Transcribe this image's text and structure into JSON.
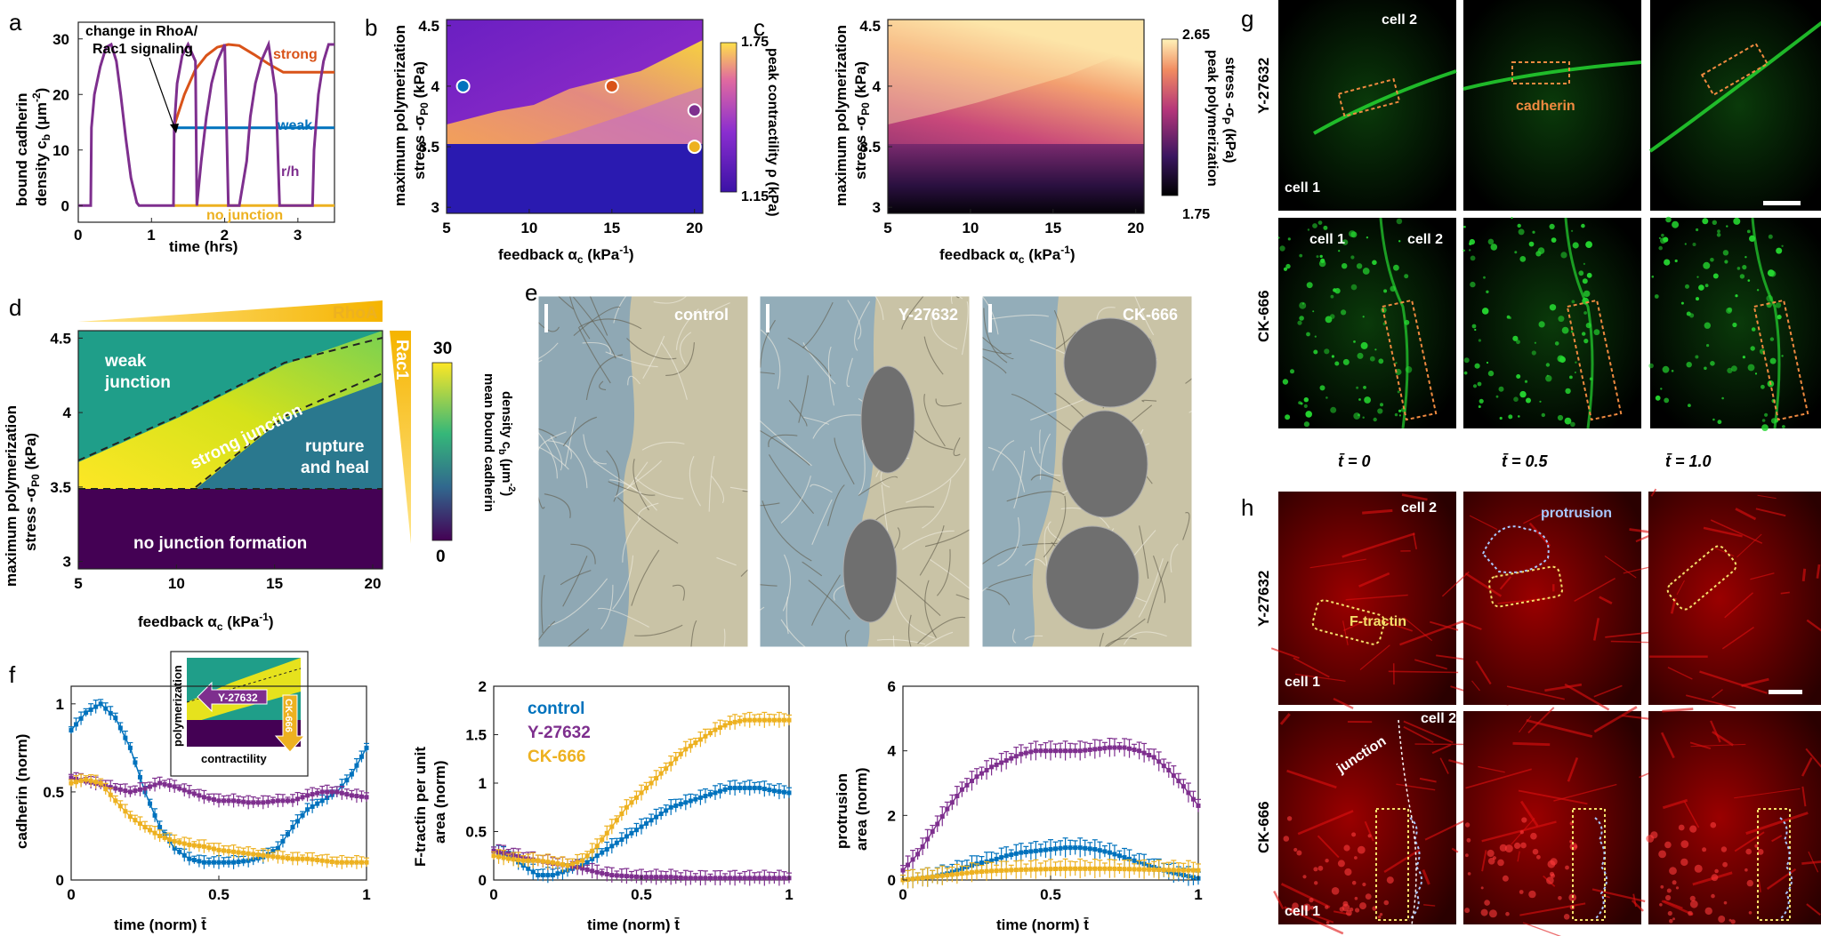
{
  "figure": {
    "panel_letters": [
      "a",
      "b",
      "c",
      "d",
      "e",
      "f",
      "g",
      "h"
    ]
  },
  "colors": {
    "strong": "#D95319",
    "weak": "#0072BD",
    "rh": "#7E2F8E",
    "nojunction": "#EDB120",
    "control": "#0072BD",
    "y27632": "#7E2F8E",
    "ck666": "#EDB120",
    "g_green": "#25d630",
    "h_red": "#e01010"
  },
  "panel_a": {
    "annotation_line1": "change in RhoA/",
    "annotation_line2": "Rac1 signaling",
    "label_strong": "strong",
    "label_weak": "weak",
    "label_rh": "r/h",
    "label_nojunction": "no junction",
    "xlabel": "time (hrs)",
    "ylabel_line1": "bound cadherin",
    "ylabel_line2": "density c",
    "ylabel_sub": "b",
    "ylabel_unit": " (μm",
    "ylabel_exp": "-2",
    "ylabel_close": ")",
    "xticks": [
      "0",
      "1",
      "2",
      "3"
    ],
    "yticks": [
      "0",
      "10",
      "20",
      "30"
    ]
  },
  "panel_b": {
    "ylabel_line1": "maximum polymerization",
    "ylabel_line2": "stress -σ",
    "ylabel_sub": "P0",
    "ylabel_unit": " (kPa)",
    "xlabel": "feedback α",
    "xlabel_sub": "c",
    "xlabel_unit": " (kPa",
    "xlabel_exp": "-1",
    "xlabel_close": ")",
    "xticks": [
      "5",
      "10",
      "15",
      "20"
    ],
    "yticks": [
      "3",
      "3.5",
      "4",
      "4.5"
    ],
    "cbar_max": "1.75",
    "cbar_min": "1.15",
    "cbar_label": "peak contractility ρ (kPa)"
  },
  "panel_c": {
    "ylabel_line1": "maximum polymerization",
    "ylabel_line2": "stress -σ",
    "ylabel_sub": "P0",
    "ylabel_unit": " (kPa)",
    "xlabel": "feedback α",
    "xlabel_sub": "c",
    "xlabel_unit": " (kPa",
    "xlabel_exp": "-1",
    "xlabel_close": ")",
    "xticks": [
      "5",
      "10",
      "15",
      "20"
    ],
    "yticks": [
      "3",
      "3.5",
      "4",
      "4.5"
    ],
    "cbar_max": "2.65",
    "cbar_min": "1.75",
    "cbar_label_line1": "peak polymerization",
    "cbar_label_line2": "stress -σ",
    "cbar_label_sub": "P",
    "cbar_label_unit": " (kPa)"
  },
  "panel_d": {
    "rhoa": "RhoA",
    "rac1": "Rac1",
    "region_weak_1": "weak",
    "region_weak_2": "junction",
    "region_strong": "strong junction",
    "region_rh_1": "rupture",
    "region_rh_2": "and heal",
    "region_none": "no junction formation",
    "ylabel_line1": "maximum polymerization",
    "ylabel_line2": "stress -σ",
    "ylabel_sub": "P0",
    "ylabel_unit": " (kPa)",
    "xlabel": "feedback α",
    "xlabel_sub": "c",
    "xlabel_unit": " (kPa",
    "xlabel_exp": "-1",
    "xlabel_close": ")",
    "xticks": [
      "5",
      "10",
      "15",
      "20"
    ],
    "yticks": [
      "3",
      "3.5",
      "4",
      "4.5"
    ],
    "cbar_max": "30",
    "cbar_min": "0",
    "cbar_label_line1": "mean bound cadherin",
    "cbar_label_line2": "density c",
    "cbar_label_sub": "b",
    "cbar_label_unit": " (μm",
    "cbar_label_exp": "-2",
    "cbar_label_close": ")"
  },
  "panel_e": {
    "labels": [
      "control",
      "Y-27632",
      "CK-666"
    ]
  },
  "panel_f": {
    "inset_ylabel": "polymerization",
    "inset_xlabel": "contractility",
    "inset_arrow1": "Y-27632",
    "inset_arrow2": "CK-666",
    "xlabel": "time (norm) t̄",
    "xticks": [
      "0",
      "0.5",
      "1"
    ],
    "plot1_ylabel": "cadherin (norm)",
    "plot1_yticks": [
      "0",
      "0.5",
      "1"
    ],
    "plot2_ylabel_line1": "F-tractin per unit",
    "plot2_ylabel_line2": "area (norm)",
    "plot2_yticks": [
      "0",
      "0.5",
      "1",
      "1.5",
      "2"
    ],
    "plot3_ylabel_line1": "protrusion",
    "plot3_ylabel_line2": "area (norm)",
    "plot3_yticks": [
      "0",
      "2",
      "4",
      "6"
    ],
    "legend": [
      "control",
      "Y-27632",
      "CK-666"
    ]
  },
  "panel_g": {
    "row1": "Y-27632",
    "row2": "CK-666",
    "cell1": "cell 1",
    "cell2": "cell 2",
    "cadherin": "cadherin",
    "times": [
      "t̄ = 0",
      "t̄ = 0.5",
      "t̄ = 1.0"
    ]
  },
  "panel_h": {
    "row1": "Y-27632",
    "row2": "CK-666",
    "cell1": "cell 1",
    "cell2": "cell 2",
    "protrusion": "protrusion",
    "ftractin": "F-tractin",
    "junction": "junction"
  },
  "chart_data": [
    {
      "id": "a",
      "type": "line",
      "title": "",
      "xlabel": "time (hrs)",
      "ylabel": "bound cadherin density c_b (μm^-2)",
      "xlim": [
        0,
        3.5
      ],
      "ylim": [
        -3,
        33
      ],
      "series": [
        {
          "name": "strong",
          "x": [
            1.3,
            1.45,
            1.6,
            1.75,
            1.9,
            2.05,
            2.2,
            2.4,
            2.6,
            2.8,
            3.0,
            3.2,
            3.5
          ],
          "values": [
            14,
            20,
            24.5,
            27,
            28.5,
            29,
            28.8,
            27.2,
            25.5,
            24,
            24,
            24,
            24
          ]
        },
        {
          "name": "weak",
          "x": [
            1.3,
            3.5
          ],
          "values": [
            14,
            14
          ]
        },
        {
          "name": "r/h",
          "x": [
            0,
            0.17,
            0.18,
            0.22,
            0.3,
            0.38,
            0.45,
            0.52,
            0.58,
            0.65,
            0.72,
            0.8,
            0.83,
            1.3,
            1.31,
            1.35,
            1.42,
            1.5,
            1.6,
            1.62,
            1.68,
            1.75,
            1.82,
            1.9,
            2.0,
            2.05,
            2.2,
            2.3,
            2.35,
            2.42,
            2.5,
            2.6,
            2.7,
            2.75,
            3.2,
            3.22,
            3.28,
            3.35,
            3.42,
            3.5
          ],
          "values": [
            0,
            0,
            14,
            20,
            25,
            28.5,
            29,
            26,
            20,
            12,
            5,
            0.5,
            0,
            0,
            14,
            22,
            27,
            29,
            26,
            0,
            8,
            16,
            22,
            26,
            29,
            0,
            0,
            8,
            16,
            22,
            26,
            29,
            20,
            0,
            0,
            10,
            20,
            26,
            29,
            29
          ]
        },
        {
          "name": "no junction",
          "x": [
            1.3,
            3.5
          ],
          "values": [
            0,
            0
          ]
        }
      ]
    },
    {
      "id": "b",
      "type": "heatmap",
      "xlabel": "feedback α_c (kPa^-1)",
      "ylabel": "maximum polymerization stress -σ_P0 (kPa)",
      "xlim": [
        5,
        20.5
      ],
      "ylim": [
        2.95,
        4.55
      ],
      "colorbar": {
        "label": "peak contractility ρ (kPa)",
        "min": 1.15,
        "max": 1.75
      },
      "markers": [
        {
          "x": 6,
          "y": 4.0,
          "color": "#0072BD"
        },
        {
          "x": 15,
          "y": 4.0,
          "color": "#D95319"
        },
        {
          "x": 20,
          "y": 3.8,
          "color": "#7E2F8E"
        },
        {
          "x": 20,
          "y": 3.5,
          "color": "#EDB120"
        }
      ]
    },
    {
      "id": "c",
      "type": "heatmap",
      "xlabel": "feedback α_c (kPa^-1)",
      "ylabel": "maximum polymerization stress -σ_P0 (kPa)",
      "xlim": [
        5,
        20.5
      ],
      "ylim": [
        2.95,
        4.55
      ],
      "colorbar": {
        "label": "peak polymerization stress -σ_P (kPa)",
        "min": 1.75,
        "max": 2.65
      }
    },
    {
      "id": "d",
      "type": "heatmap",
      "xlabel": "feedback α_c (kPa^-1)",
      "ylabel": "maximum polymerization stress -σ_P0 (kPa)",
      "xlim": [
        5,
        20.5
      ],
      "ylim": [
        2.95,
        4.55
      ],
      "colorbar": {
        "label": "mean bound cadherin density c_b (μm^-2)",
        "min": 0,
        "max": 30
      },
      "regions": [
        "weak junction",
        "strong junction",
        "rupture and heal",
        "no junction formation"
      ]
    },
    {
      "id": "f1",
      "type": "line",
      "xlabel": "time (norm) t̄",
      "ylabel": "cadherin (norm)",
      "xlim": [
        0,
        1
      ],
      "ylim": [
        0,
        1.05
      ],
      "series": [
        {
          "name": "control",
          "x": [
            0,
            0.05,
            0.1,
            0.15,
            0.2,
            0.25,
            0.3,
            0.35,
            0.4,
            0.45,
            0.5,
            0.55,
            0.6,
            0.65,
            0.7,
            0.75,
            0.8,
            0.85,
            0.9,
            0.95,
            1.0
          ],
          "values": [
            0.85,
            0.95,
            1.0,
            0.92,
            0.75,
            0.5,
            0.3,
            0.18,
            0.12,
            0.1,
            0.1,
            0.1,
            0.11,
            0.13,
            0.18,
            0.3,
            0.4,
            0.45,
            0.5,
            0.6,
            0.75
          ]
        },
        {
          "name": "Y-27632",
          "x": [
            0,
            0.05,
            0.1,
            0.15,
            0.2,
            0.25,
            0.3,
            0.35,
            0.4,
            0.45,
            0.5,
            0.55,
            0.6,
            0.65,
            0.7,
            0.75,
            0.8,
            0.85,
            0.9,
            0.95,
            1.0
          ],
          "values": [
            0.58,
            0.56,
            0.54,
            0.52,
            0.5,
            0.52,
            0.55,
            0.53,
            0.5,
            0.47,
            0.45,
            0.45,
            0.44,
            0.44,
            0.45,
            0.45,
            0.48,
            0.5,
            0.5,
            0.48,
            0.47
          ]
        },
        {
          "name": "CK-666",
          "x": [
            0,
            0.05,
            0.1,
            0.15,
            0.2,
            0.25,
            0.3,
            0.35,
            0.4,
            0.45,
            0.5,
            0.55,
            0.6,
            0.65,
            0.7,
            0.75,
            0.8,
            0.85,
            0.9,
            0.95,
            1.0
          ],
          "values": [
            0.55,
            0.57,
            0.55,
            0.45,
            0.36,
            0.3,
            0.25,
            0.22,
            0.2,
            0.19,
            0.17,
            0.16,
            0.15,
            0.14,
            0.13,
            0.12,
            0.12,
            0.11,
            0.1,
            0.1,
            0.1
          ]
        }
      ]
    },
    {
      "id": "f2",
      "type": "line",
      "xlabel": "time (norm) t̄",
      "ylabel": "F-tractin per unit area (norm)",
      "xlim": [
        0,
        1
      ],
      "ylim": [
        0,
        2
      ],
      "series": [
        {
          "name": "control",
          "x": [
            0,
            0.05,
            0.1,
            0.15,
            0.2,
            0.25,
            0.3,
            0.35,
            0.4,
            0.45,
            0.5,
            0.55,
            0.6,
            0.65,
            0.7,
            0.75,
            0.8,
            0.85,
            0.9,
            0.95,
            1.0
          ],
          "values": [
            0.3,
            0.25,
            0.15,
            0.05,
            0.05,
            0.1,
            0.15,
            0.25,
            0.35,
            0.45,
            0.55,
            0.65,
            0.75,
            0.8,
            0.85,
            0.9,
            0.95,
            0.95,
            0.95,
            0.92,
            0.9
          ]
        },
        {
          "name": "Y-27632",
          "x": [
            0,
            0.05,
            0.1,
            0.15,
            0.2,
            0.25,
            0.3,
            0.35,
            0.4,
            0.45,
            0.5,
            0.55,
            0.6,
            0.65,
            0.7,
            0.75,
            0.8,
            0.85,
            0.9,
            0.95,
            1.0
          ],
          "values": [
            0.3,
            0.27,
            0.23,
            0.2,
            0.17,
            0.15,
            0.12,
            0.08,
            0.05,
            0.04,
            0.03,
            0.03,
            0.03,
            0.02,
            0.02,
            0.02,
            0.02,
            0.02,
            0.02,
            0.02,
            0.02
          ]
        },
        {
          "name": "CK-666",
          "x": [
            0,
            0.05,
            0.1,
            0.15,
            0.2,
            0.25,
            0.3,
            0.35,
            0.4,
            0.45,
            0.5,
            0.55,
            0.6,
            0.65,
            0.7,
            0.75,
            0.8,
            0.85,
            0.9,
            0.95,
            1.0
          ],
          "values": [
            0.25,
            0.22,
            0.2,
            0.2,
            0.18,
            0.15,
            0.2,
            0.35,
            0.55,
            0.75,
            0.9,
            1.05,
            1.2,
            1.35,
            1.45,
            1.55,
            1.62,
            1.65,
            1.65,
            1.65,
            1.65
          ]
        }
      ]
    },
    {
      "id": "f3",
      "type": "line",
      "xlabel": "time (norm) t̄",
      "ylabel": "protrusion area (norm)",
      "xlim": [
        0,
        1
      ],
      "ylim": [
        0,
        6
      ],
      "series": [
        {
          "name": "control",
          "x": [
            0,
            0.05,
            0.1,
            0.15,
            0.2,
            0.25,
            0.3,
            0.35,
            0.4,
            0.45,
            0.5,
            0.55,
            0.6,
            0.65,
            0.7,
            0.75,
            0.8,
            0.85,
            0.9,
            0.95,
            1.0
          ],
          "values": [
            0,
            0.05,
            0.1,
            0.2,
            0.35,
            0.5,
            0.6,
            0.75,
            0.85,
            0.9,
            0.95,
            1.0,
            1.0,
            0.95,
            0.85,
            0.7,
            0.55,
            0.4,
            0.25,
            0.15,
            0.05
          ]
        },
        {
          "name": "Y-27632",
          "x": [
            0,
            0.05,
            0.1,
            0.15,
            0.2,
            0.25,
            0.3,
            0.35,
            0.4,
            0.45,
            0.5,
            0.55,
            0.6,
            0.65,
            0.7,
            0.75,
            0.8,
            0.85,
            0.9,
            0.95,
            1.0
          ],
          "values": [
            0.3,
            0.8,
            1.5,
            2.2,
            2.8,
            3.2,
            3.5,
            3.7,
            3.9,
            4.0,
            4.0,
            4.0,
            4.0,
            4.05,
            4.1,
            4.1,
            4.0,
            3.8,
            3.4,
            2.9,
            2.3
          ]
        },
        {
          "name": "CK-666",
          "x": [
            0,
            0.05,
            0.1,
            0.15,
            0.2,
            0.25,
            0.3,
            0.35,
            0.4,
            0.45,
            0.5,
            0.55,
            0.6,
            0.65,
            0.7,
            0.75,
            0.8,
            0.85,
            0.9,
            0.95,
            1.0
          ],
          "values": [
            0,
            0.05,
            0.1,
            0.15,
            0.2,
            0.25,
            0.28,
            0.3,
            0.32,
            0.33,
            0.34,
            0.35,
            0.35,
            0.35,
            0.35,
            0.34,
            0.33,
            0.32,
            0.31,
            0.3,
            0.3
          ]
        }
      ]
    }
  ]
}
